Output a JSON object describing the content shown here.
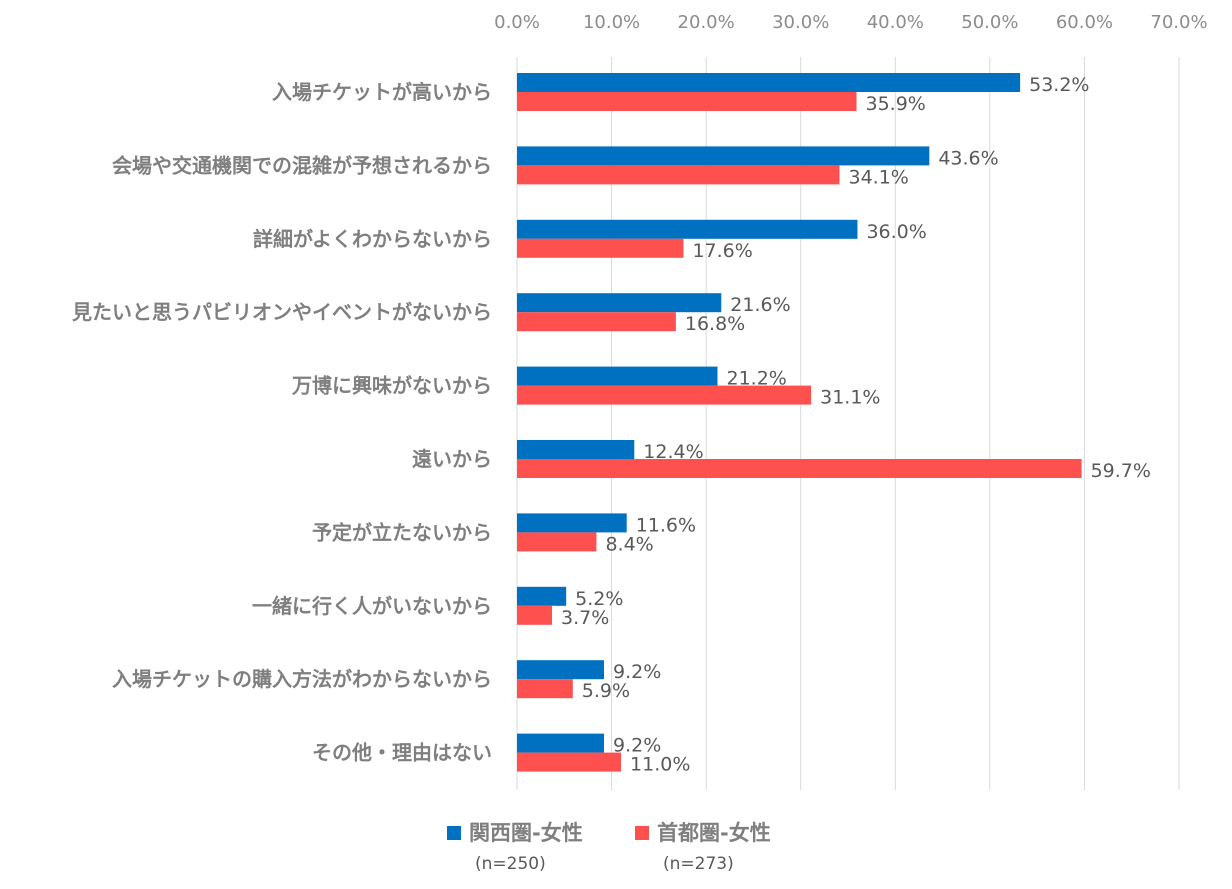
{
  "chart_data": {
    "type": "bar",
    "orientation": "horizontal",
    "categories": [
      "入場チケットが高いから",
      "会場や交通機関での混雑が予想されるから",
      "詳細がよくわからないから",
      "見たいと思うパビリオンやイベントがないから",
      "万博に興味がないから",
      "遠いから",
      "予定が立たないから",
      "一緒に行く人がいないから",
      "入場チケットの購入方法がわからないから",
      "その他・理由はない"
    ],
    "series": [
      {
        "name": "関西圏-女性",
        "n_label": "(n=250)",
        "color": "#0070c0",
        "values": [
          53.2,
          43.6,
          36.0,
          21.6,
          21.2,
          12.4,
          11.6,
          5.2,
          9.2,
          9.2
        ],
        "value_labels": [
          "53.2%",
          "43.6%",
          "36.0%",
          "21.6%",
          "21.2%",
          "12.4%",
          "11.6%",
          "5.2%",
          "9.2%",
          "9.2%"
        ]
      },
      {
        "name": "首都圏-女性",
        "n_label": "(n=273)",
        "color": "#ff5050",
        "values": [
          35.9,
          34.1,
          17.6,
          16.8,
          31.1,
          59.7,
          8.4,
          3.7,
          5.9,
          11.0
        ],
        "value_labels": [
          "35.9%",
          "34.1%",
          "17.6%",
          "16.8%",
          "31.1%",
          "59.7%",
          "8.4%",
          "3.7%",
          "5.9%",
          "11.0%"
        ]
      }
    ],
    "xlim": [
      0,
      70
    ],
    "x_ticks": [
      0,
      10,
      20,
      30,
      40,
      50,
      60,
      70
    ],
    "x_tick_labels": [
      "0.0%",
      "10.0%",
      "20.0%",
      "30.0%",
      "40.0%",
      "50.0%",
      "60.0%",
      "70.0%"
    ],
    "x_axis_position": "top",
    "grid": true,
    "legend_position": "bottom",
    "title": "",
    "xlabel": "",
    "ylabel": ""
  }
}
